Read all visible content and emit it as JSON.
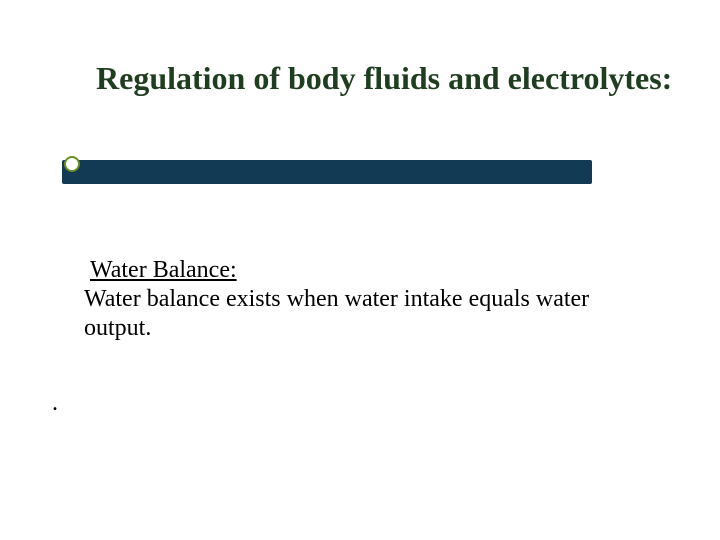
{
  "slide": {
    "title": "Regulation of body fluids and electrolytes:",
    "title_color": "#1f3d1f",
    "title_fontsize": 32,
    "rule": {
      "bar_color": "#123a54",
      "dot_border_color": "#6b8e23",
      "dot_fill": "#ffffff"
    },
    "subheading": "Water Balance:",
    "body": "Water balance exists when water intake equals water output.",
    "body_fontsize": 24,
    "body_color": "#000000",
    "stray": ".",
    "background_color": "#ffffff",
    "font_family": "Times New Roman"
  }
}
